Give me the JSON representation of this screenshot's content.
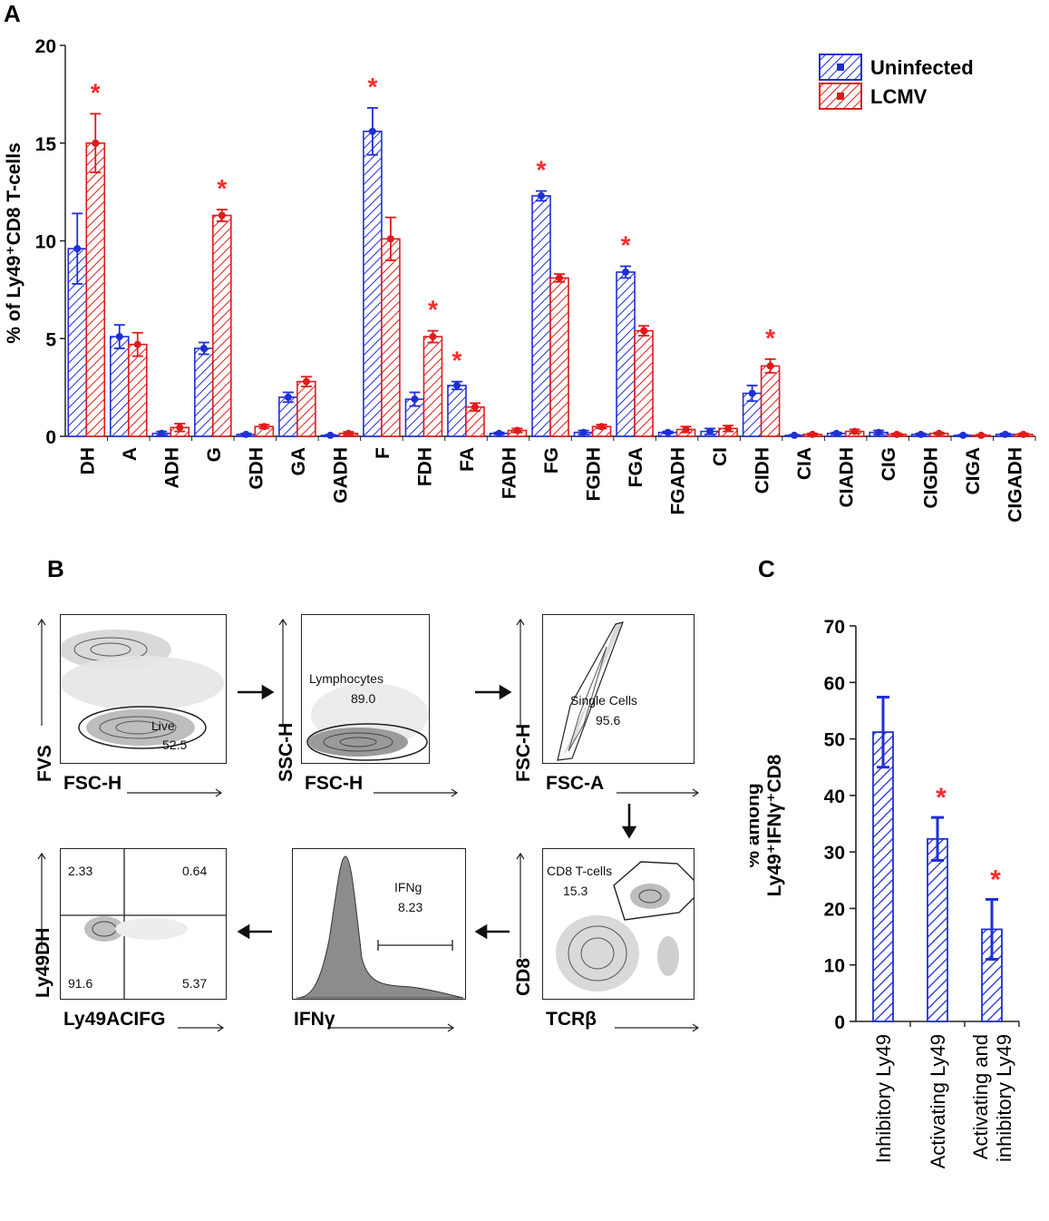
{
  "panels": {
    "a": "A",
    "b": "B",
    "c": "C"
  },
  "colors": {
    "uninfected": "#1f2fd6",
    "lcmv": "#e01b1b",
    "star": "#ff2a2a",
    "barC": "#1f2fd6"
  },
  "chart_data": [
    {
      "id": "A",
      "type": "bar",
      "ylabel": "% of Ly49⁺CD8 T-cells",
      "ylim": [
        0,
        20
      ],
      "yticks": [
        0,
        5,
        10,
        15,
        20
      ],
      "legend_position": "top-right",
      "categories": [
        "DH",
        "A",
        "ADH",
        "G",
        "GDH",
        "GA",
        "GADH",
        "F",
        "FDH",
        "FA",
        "FADH",
        "FG",
        "FGDH",
        "FGA",
        "FGADH",
        "CI",
        "CIDH",
        "CIA",
        "CIADH",
        "CIG",
        "CIGDH",
        "CIGA",
        "CIGADH"
      ],
      "series": [
        {
          "name": "Uninfected",
          "values": [
            9.6,
            5.1,
            0.15,
            4.5,
            0.1,
            2.0,
            0.05,
            15.6,
            1.9,
            2.6,
            0.15,
            12.3,
            0.2,
            8.4,
            0.2,
            0.25,
            2.2,
            0.05,
            0.15,
            0.2,
            0.1,
            0.05,
            0.1
          ],
          "errors": [
            1.8,
            0.6,
            0.1,
            0.3,
            0.05,
            0.25,
            0.03,
            1.2,
            0.35,
            0.2,
            0.05,
            0.25,
            0.1,
            0.3,
            0.05,
            0.15,
            0.4,
            0.03,
            0.05,
            0.1,
            0.05,
            0.03,
            0.05
          ]
        },
        {
          "name": "LCMV",
          "values": [
            15.0,
            4.7,
            0.45,
            11.3,
            0.5,
            2.8,
            0.15,
            10.1,
            5.1,
            1.5,
            0.3,
            8.1,
            0.5,
            5.4,
            0.35,
            0.4,
            3.6,
            0.1,
            0.25,
            0.1,
            0.15,
            0.05,
            0.1
          ],
          "errors": [
            1.5,
            0.6,
            0.2,
            0.3,
            0.1,
            0.25,
            0.08,
            1.1,
            0.3,
            0.2,
            0.1,
            0.2,
            0.1,
            0.25,
            0.15,
            0.15,
            0.35,
            0.05,
            0.1,
            0.05,
            0.05,
            0.03,
            0.05
          ]
        }
      ],
      "significant": [
        "DH",
        "G",
        "F",
        "FDH",
        "FA",
        "FG",
        "FGA",
        "CIDH"
      ],
      "star": "*"
    },
    {
      "id": "C",
      "type": "bar",
      "ylabel_line1": "% among",
      "ylabel_line2": "Ly49⁺IFNγ⁺CD8",
      "ylim": [
        0,
        70
      ],
      "yticks": [
        0,
        10,
        20,
        30,
        40,
        50,
        60,
        70
      ],
      "categories": [
        "Inhibitory Ly49",
        "Activating Ly49",
        "Activating and inhibitory Ly49"
      ],
      "category_lines": [
        [
          "Inhibitory Ly49"
        ],
        [
          "Activating Ly49"
        ],
        [
          "Activating and",
          "inhibitory Ly49"
        ]
      ],
      "values": [
        51.2,
        32.3,
        16.3
      ],
      "errors": [
        6.2,
        3.8,
        5.3
      ],
      "significant": [
        false,
        true,
        true
      ],
      "star": "*"
    }
  ],
  "flow": {
    "p1": {
      "y": "FVS",
      "x": "FSC-H",
      "gate": "Live",
      "value": "52.5"
    },
    "p2": {
      "y": "SSC-H",
      "x": "FSC-H",
      "gate": "Lymphocytes",
      "value": "89.0"
    },
    "p3": {
      "y": "FSC-H",
      "x": "FSC-A",
      "gate": "Single Cells",
      "value": "95.6"
    },
    "p4": {
      "y": "CD8",
      "x": "TCRβ",
      "gate": "CD8 T-cells",
      "value": "15.3"
    },
    "p5": {
      "y": "",
      "x": "IFNγ",
      "gate": "IFNg",
      "value": "8.23"
    },
    "p6": {
      "y": "Ly49DH",
      "x": "Ly49ACIFG",
      "q_ul": "2.33",
      "q_ur": "0.64",
      "q_ll": "91.6",
      "q_lr": "5.37"
    }
  }
}
